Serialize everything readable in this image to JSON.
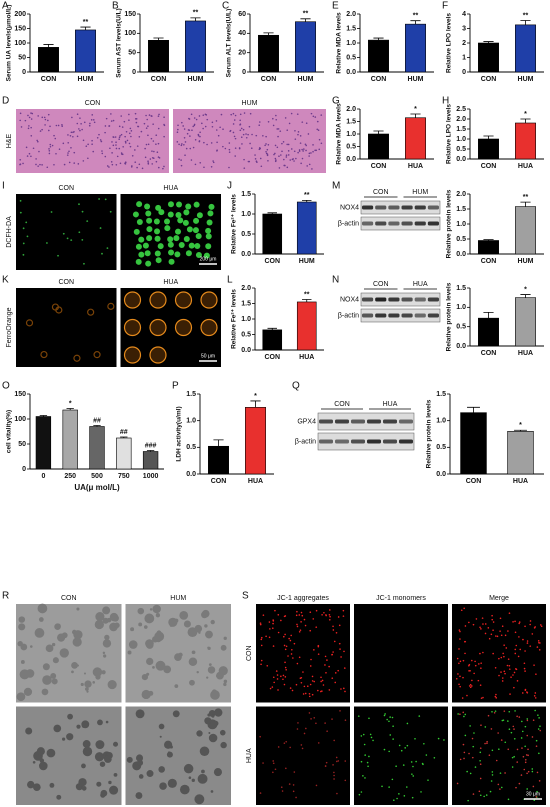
{
  "chart_data": [
    {
      "type": "bar",
      "letter": "A",
      "y_label": "Serum UA levels(μmol/L)",
      "categories": [
        "CON",
        "HUM"
      ],
      "values": [
        85,
        145
      ],
      "errors": [
        10,
        10
      ],
      "annotations": [
        null,
        "**"
      ],
      "colors": [
        "#000000",
        "#1f3fa8"
      ],
      "ylim": [
        0,
        200
      ],
      "yticks": [
        0,
        50,
        100,
        150,
        200
      ]
    },
    {
      "type": "bar",
      "letter": "B",
      "y_label": "Serum AST levels(U/L)",
      "categories": [
        "CON",
        "HUM"
      ],
      "values": [
        82,
        132
      ],
      "errors": [
        6,
        8
      ],
      "annotations": [
        null,
        "**"
      ],
      "colors": [
        "#000000",
        "#1f3fa8"
      ],
      "ylim": [
        0,
        150
      ],
      "yticks": [
        0,
        50,
        100,
        150
      ]
    },
    {
      "type": "bar",
      "letter": "C",
      "y_label": "Serum ALT levels(U/L)",
      "categories": [
        "CON",
        "HUM"
      ],
      "values": [
        38,
        52
      ],
      "errors": [
        2.5,
        3
      ],
      "annotations": [
        null,
        "**"
      ],
      "colors": [
        "#000000",
        "#1f3fa8"
      ],
      "ylim": [
        0,
        60
      ],
      "yticks": [
        0,
        20,
        40,
        60
      ]
    },
    {
      "type": "bar",
      "letter": "E",
      "y_label": "Relative MDA levels",
      "categories": [
        "CON",
        "HUM"
      ],
      "values": [
        1.1,
        1.65
      ],
      "errors": [
        0.07,
        0.12
      ],
      "annotations": [
        null,
        "**"
      ],
      "colors": [
        "#000000",
        "#1f3fa8"
      ],
      "ylim": [
        0,
        2
      ],
      "yticks": [
        {
          "value": 0,
          "label": "0.0"
        },
        0.5,
        {
          "value": 1,
          "label": "1.0"
        },
        1.5,
        {
          "value": 2,
          "label": "2.0"
        }
      ]
    },
    {
      "type": "bar",
      "letter": "F",
      "y_label": "Relative LPO levels",
      "categories": [
        "CON",
        "HUM"
      ],
      "values": [
        2.0,
        3.25
      ],
      "errors": [
        0.1,
        0.3
      ],
      "annotations": [
        null,
        "**"
      ],
      "colors": [
        "#000000",
        "#1f3fa8"
      ],
      "ylim": [
        0,
        4
      ],
      "yticks": [
        0,
        1,
        2,
        3,
        4
      ]
    },
    {
      "type": "bar",
      "letter": "G",
      "y_label": "Relative MDA levels",
      "categories": [
        "CON",
        "HUA"
      ],
      "values": [
        1.0,
        1.65
      ],
      "errors": [
        0.12,
        0.15
      ],
      "annotations": [
        null,
        "*"
      ],
      "colors": [
        "#000000",
        "#e8302e"
      ],
      "ylim": [
        0,
        2
      ],
      "yticks": [
        {
          "value": 0,
          "label": "0.0"
        },
        0.5,
        {
          "value": 1,
          "label": "1.0"
        },
        1.5,
        {
          "value": 2,
          "label": "2.0"
        }
      ]
    },
    {
      "type": "bar",
      "letter": "H",
      "y_label": "Relative LPO levels",
      "categories": [
        "CON",
        "HUA"
      ],
      "values": [
        1.0,
        1.8
      ],
      "errors": [
        0.15,
        0.2
      ],
      "annotations": [
        null,
        "*"
      ],
      "colors": [
        "#000000",
        "#e8302e"
      ],
      "ylim": [
        0,
        2.5
      ],
      "yticks": [
        {
          "value": 0,
          "label": "0.0"
        },
        0.5,
        {
          "value": 1,
          "label": "1.0"
        },
        1.5,
        {
          "value": 2,
          "label": "2.0"
        },
        2.5
      ]
    },
    {
      "type": "bar",
      "letter": "J",
      "y_label": "Relative Fe²⁺ levels",
      "categories": [
        "CON",
        "HUM"
      ],
      "values": [
        1.0,
        1.3
      ],
      "errors": [
        0.03,
        0.04
      ],
      "annotations": [
        null,
        "**"
      ],
      "colors": [
        "#000000",
        "#1f3fa8"
      ],
      "ylim": [
        0,
        1.5
      ],
      "yticks": [
        {
          "value": 0,
          "label": "0.0"
        },
        0.5,
        {
          "value": 1,
          "label": "1.0"
        },
        1.5
      ]
    },
    {
      "type": "bar",
      "letter": "M",
      "y_label": "Relative protein levels",
      "categories": [
        "CON",
        "HUM"
      ],
      "values": [
        0.45,
        1.58
      ],
      "errors": [
        0.03,
        0.15
      ],
      "annotations": [
        null,
        "**"
      ],
      "colors": [
        "#000000",
        "#a0a0a0"
      ],
      "ylim": [
        0,
        2
      ],
      "yticks": [
        {
          "value": 0,
          "label": "0.0"
        },
        0.5,
        {
          "value": 1,
          "label": "1.0"
        },
        1.5,
        {
          "value": 2,
          "label": "2.0"
        }
      ]
    },
    {
      "type": "bar",
      "letter": "L",
      "y_label": "Relative Fe²⁺ levels",
      "categories": [
        "CON",
        "HUA"
      ],
      "values": [
        0.65,
        1.55
      ],
      "errors": [
        0.05,
        0.08
      ],
      "annotations": [
        null,
        "**"
      ],
      "colors": [
        "#000000",
        "#e8302e"
      ],
      "ylim": [
        0,
        2
      ],
      "yticks": [
        {
          "value": 0,
          "label": "0.0"
        },
        0.5,
        {
          "value": 1,
          "label": "1.0"
        },
        1.5,
        {
          "value": 2,
          "label": "2.0"
        }
      ]
    },
    {
      "type": "bar",
      "letter": "N",
      "y_label": "Relative protein levels",
      "categories": [
        "CON",
        "HUA"
      ],
      "values": [
        0.72,
        1.25
      ],
      "errors": [
        0.15,
        0.08
      ],
      "annotations": [
        null,
        "*"
      ],
      "colors": [
        "#000000",
        "#a0a0a0"
      ],
      "ylim": [
        0,
        1.5
      ],
      "yticks": [
        {
          "value": 0,
          "label": "0.0"
        },
        0.5,
        {
          "value": 1,
          "label": "1.0"
        },
        1.5
      ]
    },
    {
      "type": "bar",
      "letter": "O",
      "y_label": "cell vitality(%)",
      "x_label": "UA(μ mol/L)",
      "categories": [
        "0",
        "250",
        "500",
        "750",
        "1000"
      ],
      "values": [
        105,
        118,
        85,
        62,
        35
      ],
      "errors": [
        2,
        3,
        2,
        2,
        2
      ],
      "annotations": [
        null,
        "*",
        "##",
        "##",
        "###"
      ],
      "colors": [
        "#111111",
        "#a8a8a8",
        "#666666",
        "#e0e0e0",
        "#555555"
      ],
      "ylim": [
        0,
        150
      ],
      "yticks": [
        0,
        50,
        100,
        150
      ]
    },
    {
      "type": "bar",
      "letter": "P",
      "y_label": "LDH activity(u/ml)",
      "categories": [
        "CON",
        "HUA"
      ],
      "values": [
        0.52,
        1.25
      ],
      "errors": [
        0.12,
        0.12
      ],
      "annotations": [
        null,
        "*"
      ],
      "colors": [
        "#000000",
        "#e8302e"
      ],
      "ylim": [
        0,
        1.5
      ],
      "yticks": [
        {
          "value": 0,
          "label": "0.0"
        },
        0.5,
        {
          "value": 1,
          "label": "1.0"
        },
        1.5
      ]
    },
    {
      "type": "bar",
      "letter": "Q",
      "y_label": "Relative protein levels",
      "categories": [
        "CON",
        "HUA"
      ],
      "values": [
        1.15,
        0.8
      ],
      "errors": [
        0.1,
        0.02
      ],
      "annotations": [
        null,
        "*"
      ],
      "colors": [
        "#000000",
        "#a0a0a0"
      ],
      "ylim": [
        0,
        1.5
      ],
      "yticks": [
        {
          "value": 0,
          "label": "0.0"
        },
        0.5,
        {
          "value": 1,
          "label": "1.0"
        },
        1.5
      ]
    }
  ],
  "images": [
    {
      "letter": "D",
      "columns": [
        "CON",
        "HUM"
      ],
      "row_label": "H&E"
    },
    {
      "letter": "I",
      "columns": [
        "CON",
        "HUA"
      ],
      "row_label": "DCFH-DA",
      "scale_bar": "200 μm"
    },
    {
      "letter": "K",
      "columns": [
        "CON",
        "HUA"
      ],
      "row_label": "FerroOrange",
      "scale_bar": "50 μm"
    },
    {
      "letter": "R",
      "columns": [
        "CON",
        "HUM"
      ]
    },
    {
      "letter": "S",
      "columns": [
        "JC-1 aggregates",
        "JC-1 monomers",
        "Merge"
      ],
      "rows": [
        "CON",
        "HUA"
      ],
      "scale_bar": "30 μm"
    }
  ],
  "blots": [
    {
      "groups": [
        "CON",
        "HUM"
      ],
      "rows": [
        "NOX4",
        "β-actin"
      ]
    },
    {
      "groups": [
        "CON",
        "HUA"
      ],
      "rows": [
        "NOX4",
        "β-actin"
      ]
    },
    {
      "groups": [
        "CON",
        "HUA"
      ],
      "rows": [
        "GPX4",
        "β-actin"
      ]
    }
  ]
}
